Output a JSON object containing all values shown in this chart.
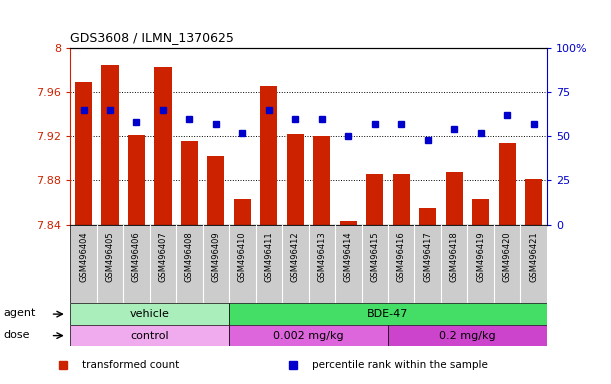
{
  "title": "GDS3608 / ILMN_1370625",
  "categories": [
    "GSM496404",
    "GSM496405",
    "GSM496406",
    "GSM496407",
    "GSM496408",
    "GSM496409",
    "GSM496410",
    "GSM496411",
    "GSM496412",
    "GSM496413",
    "GSM496414",
    "GSM496415",
    "GSM496416",
    "GSM496417",
    "GSM496418",
    "GSM496419",
    "GSM496420",
    "GSM496421"
  ],
  "bar_values": [
    7.969,
    7.985,
    7.921,
    7.983,
    7.916,
    7.902,
    7.863,
    7.966,
    7.922,
    7.92,
    7.843,
    7.886,
    7.886,
    7.855,
    7.888,
    7.863,
    7.914,
    7.881
  ],
  "percentile_values": [
    65,
    65,
    58,
    65,
    60,
    57,
    52,
    65,
    60,
    60,
    50,
    57,
    57,
    48,
    54,
    52,
    62,
    57
  ],
  "ymin": 7.84,
  "ymax": 8.0,
  "yticks": [
    7.84,
    7.88,
    7.92,
    7.96,
    8.0
  ],
  "ytick_labels": [
    "7.84",
    "7.88",
    "7.92",
    "7.96",
    "8"
  ],
  "y2min": 0,
  "y2max": 100,
  "y2ticks": [
    0,
    25,
    50,
    75,
    100
  ],
  "y2tick_labels": [
    "0",
    "25",
    "50",
    "75",
    "100%"
  ],
  "bar_color": "#cc2200",
  "dot_color": "#0000cc",
  "background_color": "#ffffff",
  "plot_bg_color": "#ffffff",
  "tick_label_color_left": "#cc2200",
  "tick_label_color_right": "#0000cc",
  "xtick_bg_color": "#cccccc",
  "agent_labels": [
    {
      "label": "vehicle",
      "start": 0,
      "end": 5,
      "color": "#aaeebb"
    },
    {
      "label": "BDE-47",
      "start": 6,
      "end": 17,
      "color": "#44dd66"
    }
  ],
  "dose_labels": [
    {
      "label": "control",
      "start": 0,
      "end": 5,
      "color": "#f0aaee"
    },
    {
      "label": "0.002 mg/kg",
      "start": 6,
      "end": 11,
      "color": "#dd66dd"
    },
    {
      "label": "0.2 mg/kg",
      "start": 12,
      "end": 17,
      "color": "#cc44cc"
    }
  ],
  "legend_items": [
    {
      "color": "#cc2200",
      "label": "transformed count"
    },
    {
      "color": "#0000cc",
      "label": "percentile rank within the sample"
    }
  ]
}
